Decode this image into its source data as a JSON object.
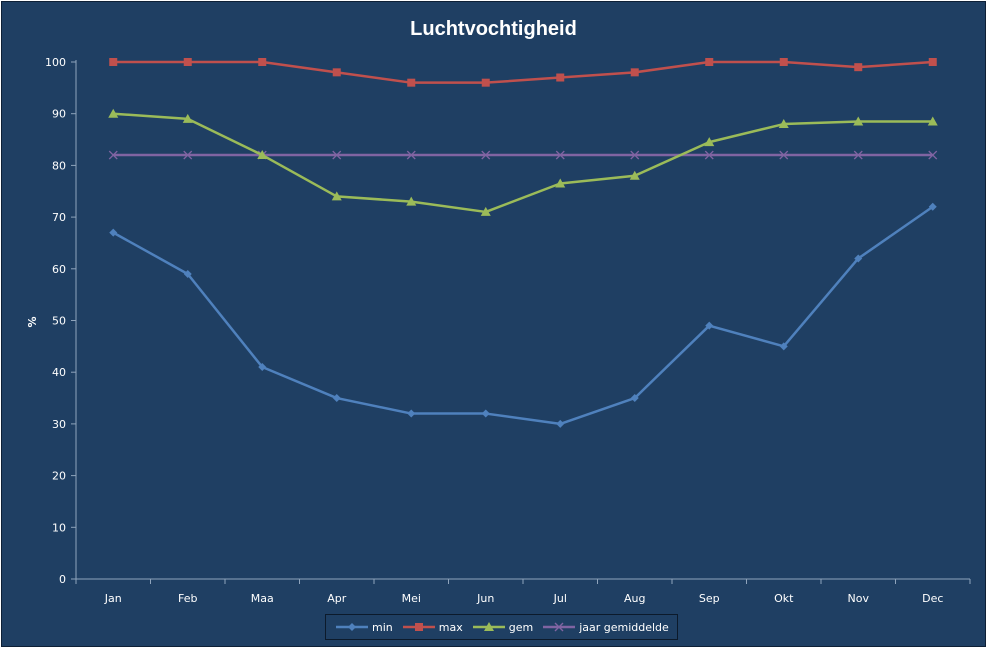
{
  "chart_data": {
    "type": "line",
    "title": "Luchtvochtigheid",
    "xlabel": "",
    "ylabel": "%",
    "ylim": [
      0,
      100
    ],
    "yticks": [
      0,
      10,
      20,
      30,
      40,
      50,
      60,
      70,
      80,
      90,
      100
    ],
    "grid": false,
    "legend_position": "bottom",
    "categories": [
      "Jan",
      "Feb",
      "Maa",
      "Apr",
      "Mei",
      "Jun",
      "Jul",
      "Aug",
      "Sep",
      "Okt",
      "Nov",
      "Dec"
    ],
    "series": [
      {
        "name": "min",
        "color": "#4f81bd",
        "marker": "diamond",
        "values": [
          67,
          59,
          41,
          35,
          32,
          32,
          30,
          35,
          49,
          45,
          62,
          72
        ]
      },
      {
        "name": "max",
        "color": "#c0504d",
        "marker": "square",
        "values": [
          100,
          100,
          100,
          98,
          96,
          96,
          97,
          98,
          100,
          100,
          99,
          100
        ]
      },
      {
        "name": "gem",
        "color": "#9bbb59",
        "marker": "triangle",
        "values": [
          90,
          89,
          82,
          74,
          73,
          71,
          76.5,
          78,
          84.5,
          88,
          88.5,
          88.5
        ]
      },
      {
        "name": "jaar gemiddelde",
        "color": "#8064a2",
        "marker": "x",
        "values": [
          82,
          82,
          82,
          82,
          82,
          82,
          82,
          82,
          82,
          82,
          82,
          82
        ]
      }
    ]
  }
}
